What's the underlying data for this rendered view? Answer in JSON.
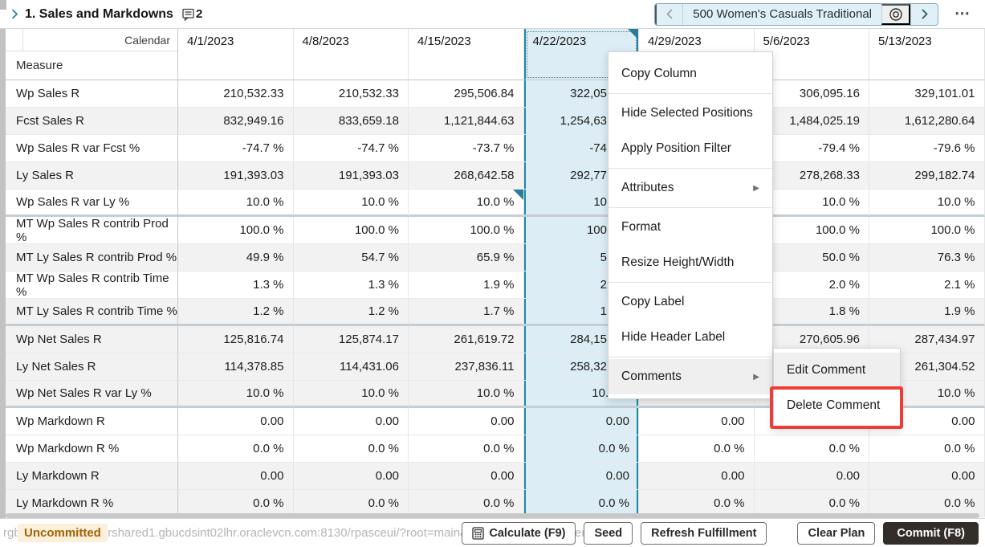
{
  "title_bar": {
    "collapse_chevron": "›",
    "title": "1. Sales and Markdowns",
    "comment_count": "2",
    "nav": {
      "position_label": "500 Women's Casuals Traditional",
      "more_label": "⋯"
    }
  },
  "pivot": {
    "corner": {
      "top_label": "Calendar",
      "bottom_label": "Measure"
    },
    "columns": [
      "4/1/2023",
      "4/8/2023",
      "4/15/2023",
      "4/22/2023",
      "4/29/2023",
      "5/6/2023",
      "5/13/2023"
    ],
    "selected_column_index": 3,
    "comment_markers": [
      {
        "row": -1,
        "col": 3
      },
      {
        "row": 4,
        "col": 2
      }
    ],
    "rows": [
      {
        "label": "Wp Sales R",
        "shaded": false,
        "group_end": false,
        "values": [
          "210,532.33",
          "210,532.33",
          "295,506.84",
          "322,05",
          "",
          "306,095.16",
          "329,101.01"
        ]
      },
      {
        "label": "Fcst Sales R",
        "shaded": true,
        "group_end": false,
        "values": [
          "832,949.16",
          "833,659.18",
          "1,121,844.63",
          "1,254,63",
          "",
          "1,484,025.19",
          "1,612,280.64"
        ]
      },
      {
        "label": "Wp Sales R var Fcst %",
        "shaded": false,
        "group_end": false,
        "values": [
          "-74.7 %",
          "-74.7 %",
          "-73.7 %",
          "-74",
          "",
          "-79.4 %",
          "-79.6 %"
        ]
      },
      {
        "label": "Ly Sales R",
        "shaded": true,
        "group_end": false,
        "values": [
          "191,393.03",
          "191,393.03",
          "268,642.58",
          "292,77",
          "",
          "278,268.33",
          "299,182.74"
        ]
      },
      {
        "label": "Wp Sales R var Ly %",
        "shaded": false,
        "group_end": true,
        "values": [
          "10.0 %",
          "10.0 %",
          "10.0 %",
          "10",
          "",
          "10.0 %",
          "10.0 %"
        ]
      },
      {
        "label": "MT Wp Sales R contrib Prod %",
        "shaded": false,
        "group_end": false,
        "values": [
          "100.0 %",
          "100.0 %",
          "100.0 %",
          "100",
          "",
          "100.0 %",
          "100.0 %"
        ]
      },
      {
        "label": "MT Ly Sales R contrib Prod %",
        "shaded": true,
        "group_end": false,
        "values": [
          "49.9 %",
          "54.7 %",
          "65.9 %",
          "5",
          "",
          "50.0 %",
          "76.3 %"
        ]
      },
      {
        "label": "MT Wp Sales R contrib Time %",
        "shaded": false,
        "group_end": false,
        "values": [
          "1.3 %",
          "1.3 %",
          "1.9 %",
          "2",
          "",
          "2.0 %",
          "2.1 %"
        ]
      },
      {
        "label": "MT Ly Sales R contrib Time %",
        "shaded": true,
        "group_end": true,
        "values": [
          "1.2 %",
          "1.2 %",
          "1.7 %",
          "1",
          "",
          "1.8 %",
          "1.9 %"
        ]
      },
      {
        "label": "Wp Net Sales R",
        "shaded": true,
        "group_end": false,
        "values": [
          "125,816.74",
          "125,874.17",
          "261,619.72",
          "284,15",
          "",
          "270,605.96",
          "287,434.97"
        ]
      },
      {
        "label": "Ly Net Sales R",
        "shaded": true,
        "group_end": false,
        "values": [
          "114,378.85",
          "114,431.06",
          "237,836.11",
          "258,32",
          "",
          "",
          "261,304.52"
        ]
      },
      {
        "label": "Wp Net Sales R var Ly %",
        "shaded": true,
        "group_end": true,
        "values": [
          "10.0 %",
          "10.0 %",
          "10.0 %",
          "10.0 %",
          "10.0 %",
          "",
          "10.0 %"
        ]
      },
      {
        "label": "Wp Markdown R",
        "shaded": false,
        "group_end": false,
        "values": [
          "0.00",
          "0.00",
          "0.00",
          "0.00",
          "0.00",
          "0.00",
          "0.00"
        ]
      },
      {
        "label": "Wp Markdown R %",
        "shaded": false,
        "group_end": false,
        "values": [
          "0.0 %",
          "0.0 %",
          "0.0 %",
          "0.0 %",
          "0.0 %",
          "0.0 %",
          "0.0 %"
        ]
      },
      {
        "label": "Ly Markdown R",
        "shaded": true,
        "group_end": false,
        "values": [
          "0.00",
          "0.00",
          "0.00",
          "0.00",
          "0.00",
          "0.00",
          "0.00"
        ]
      },
      {
        "label": "Ly Markdown R %",
        "shaded": true,
        "group_end": false,
        "values": [
          "0.0 %",
          "0.0 %",
          "0.0 %",
          "0.0 %",
          "0.0 %",
          "0.0 %",
          "0.0 %"
        ]
      }
    ]
  },
  "context_menu": {
    "items": [
      {
        "label": "Copy Column"
      },
      {
        "label": "Hide Selected Positions"
      },
      {
        "label": "Apply Position Filter"
      },
      {
        "label": "Attributes",
        "submenu": true
      },
      {
        "label": "Format"
      },
      {
        "label": "Resize Height/Width"
      },
      {
        "label": "Copy Label"
      },
      {
        "label": "Hide Header Label"
      },
      {
        "label": "Comments",
        "submenu": true,
        "open": true
      }
    ],
    "separators_after": [
      0,
      2,
      3,
      5,
      7
    ]
  },
  "submenu": {
    "items": [
      {
        "label": "Edit Comment",
        "hover": true
      },
      {
        "label": "Delete Comment",
        "highlighted": true
      }
    ],
    "highlight_color": "#ee3d38"
  },
  "bottom_bar": {
    "status_badge": "Uncommitted",
    "url": "rgbu-ion-153.snlhrprshared1.gbucdsint02lhr.oraclevcn.com:8130/rpasceui/?root=main&main=jraf-main-content-tab-4#",
    "buttons": [
      {
        "label": "Calculate (F9)",
        "icon": "calculator"
      },
      {
        "label": "Seed"
      },
      {
        "label": "Refresh Fulfillment"
      },
      {
        "label": "Clear Plan",
        "gap_before": true
      },
      {
        "label": "Commit (F8)",
        "primary": true
      }
    ]
  }
}
